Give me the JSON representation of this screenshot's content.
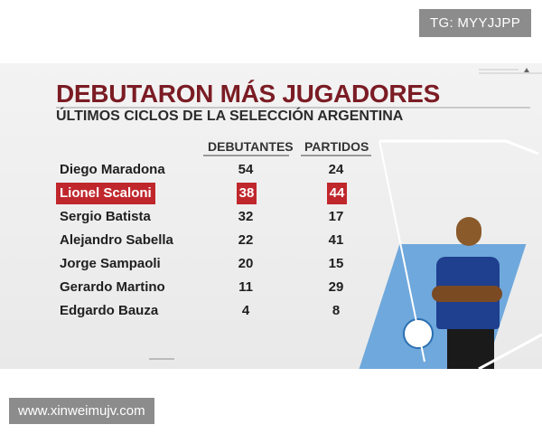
{
  "watermark_top": "TG: MYYJJPP",
  "watermark_bottom": "www.xinweimujv.com",
  "graphic": {
    "title": "DEBUTARON MÁS JUGADORES",
    "subtitle": "ÚLTIMOS CICLOS DE LA SELECCIÓN ARGENTINA",
    "columns": {
      "debut": "DEBUTANTES",
      "partidos": "PARTIDOS"
    },
    "rows": [
      {
        "name": "Diego Maradona",
        "debut": "54",
        "partidos": "24"
      },
      {
        "name": "Lionel Scaloni",
        "debut": "38",
        "partidos": "44",
        "highlight": true
      },
      {
        "name": "Sergio Batista",
        "debut": "32",
        "partidos": "17"
      },
      {
        "name": "Alejandro Sabella",
        "debut": "22",
        "partidos": "41"
      },
      {
        "name": "Jorge Sampaoli",
        "debut": "20",
        "partidos": "15"
      },
      {
        "name": "Gerardo Martino",
        "debut": "11",
        "partidos": "29"
      },
      {
        "name": "Edgardo Bauza",
        "debut": "4",
        "partidos": "8"
      }
    ],
    "colors": {
      "title": "#7b1c24",
      "highlight": "#c0272d",
      "band": "#6fa8dc"
    }
  }
}
